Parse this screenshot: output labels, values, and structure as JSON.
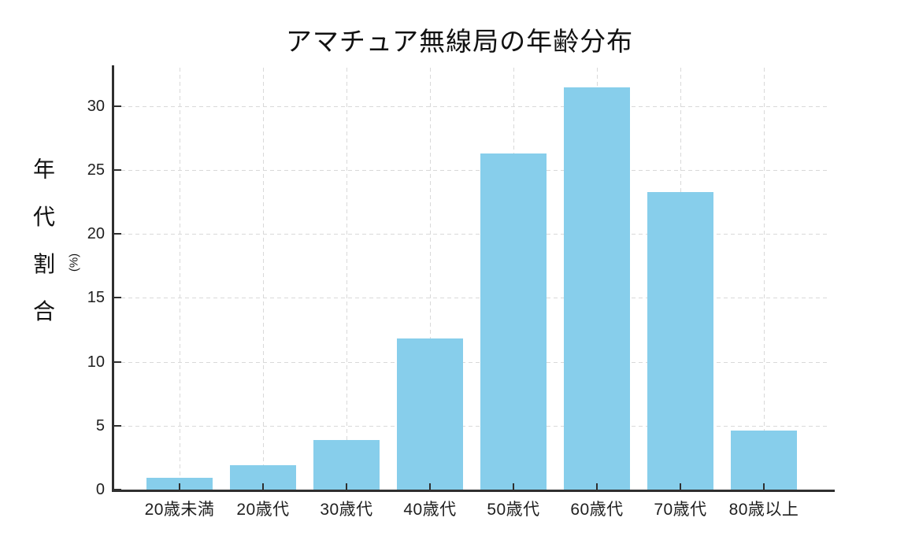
{
  "chart_data": {
    "type": "bar",
    "title": "アマチュア無線局の年齢分布",
    "ylabel": "年代割合",
    "ylabel_unit": "(%)",
    "xlabel": "",
    "categories": [
      "20歳未満",
      "20歳代",
      "30歳代",
      "40歳代",
      "50歳代",
      "60歳代",
      "70歳代",
      "80歳以上"
    ],
    "values": [
      0.9,
      1.9,
      3.9,
      11.8,
      26.3,
      31.5,
      23.3,
      4.6
    ],
    "yticks": [
      0,
      5,
      10,
      15,
      20,
      25,
      30
    ],
    "ylim": [
      0,
      33.2
    ],
    "grid": "dashed, horizontal and vertical, drawn behind bars",
    "legend": "none",
    "colors": {
      "bar": "#87CEEB",
      "grid": "#d9d9d9",
      "axis": "#2f2f2f",
      "text": "#1a1a1a",
      "background": "#ffffff"
    }
  }
}
